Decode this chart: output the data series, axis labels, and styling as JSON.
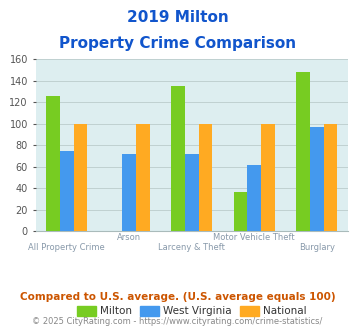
{
  "title_line1": "2019 Milton",
  "title_line2": "Property Crime Comparison",
  "categories": [
    "All Property Crime",
    "Arson",
    "Larceny & Theft",
    "Motor Vehicle Theft",
    "Burglary"
  ],
  "series": {
    "Milton": [
      126,
      0,
      135,
      36,
      148
    ],
    "West Virginia": [
      75,
      72,
      72,
      62,
      97
    ],
    "National": [
      100,
      100,
      100,
      100,
      100
    ]
  },
  "colors": {
    "Milton": "#77cc22",
    "West Virginia": "#4499ee",
    "National": "#ffaa22"
  },
  "ylim": [
    0,
    160
  ],
  "yticks": [
    0,
    20,
    40,
    60,
    80,
    100,
    120,
    140,
    160
  ],
  "bar_width": 0.22,
  "bg_color": "#ddeef0",
  "grid_color": "#bbcccc",
  "xlabel_color": "#8899aa",
  "title_color": "#1155cc",
  "legend_label_color": "#333333",
  "footer_text": "Compared to U.S. average. (U.S. average equals 100)",
  "footer_color": "#cc5500",
  "copyright_text": "© 2025 CityRating.com - https://www.cityrating.com/crime-statistics/",
  "copyright_color": "#888888",
  "title_fontsize": 11,
  "footer_fontsize": 7.5,
  "copyright_fontsize": 6.0
}
